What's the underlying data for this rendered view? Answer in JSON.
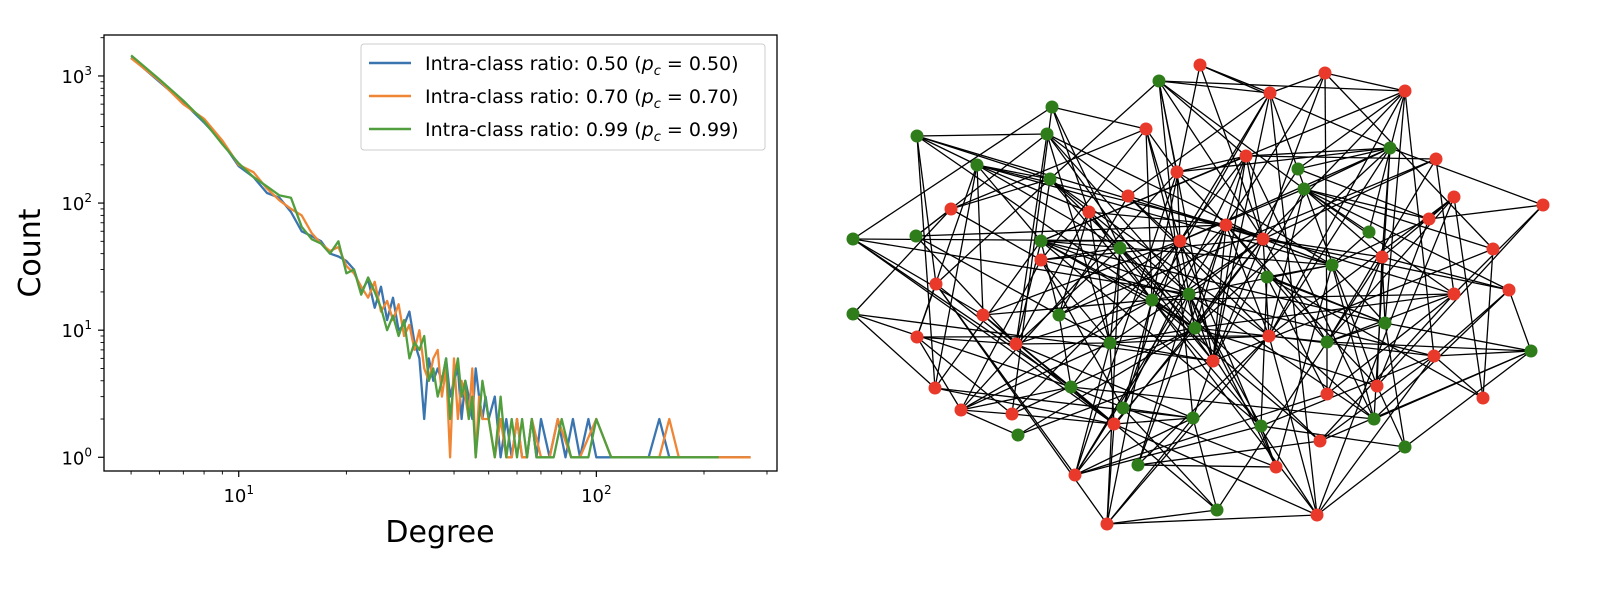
{
  "chart_data": [
    {
      "type": "line",
      "x_scale": "log",
      "y_scale": "log",
      "xlabel": "Degree",
      "ylabel": "Count",
      "xlim": [
        4.2,
        320
      ],
      "ylim": [
        0.78,
        2100
      ],
      "x_ticks": [
        {
          "value": 10,
          "base": "10",
          "exp": "1"
        },
        {
          "value": 100,
          "base": "10",
          "exp": "2"
        }
      ],
      "y_ticks": [
        {
          "value": 1,
          "base": "10",
          "exp": "0"
        },
        {
          "value": 10,
          "base": "10",
          "exp": "1"
        },
        {
          "value": 100,
          "base": "10",
          "exp": "2"
        },
        {
          "value": 1000,
          "base": "10",
          "exp": "3"
        }
      ],
      "legend_location": "top-right",
      "series": [
        {
          "name": "Intra-class ratio: 0.50",
          "pc": "0.50",
          "color": "#3b75af",
          "points": [
            [
              5,
              1400
            ],
            [
              6,
              900
            ],
            [
              7,
              620
            ],
            [
              8,
              430
            ],
            [
              9,
              300
            ],
            [
              10,
              195
            ],
            [
              11,
              160
            ],
            [
              12,
              120
            ],
            [
              13,
              110
            ],
            [
              14,
              85
            ],
            [
              15,
              60
            ],
            [
              16,
              55
            ],
            [
              17,
              50
            ],
            [
              18,
              40
            ],
            [
              19,
              38
            ],
            [
              20,
              35
            ],
            [
              21,
              30
            ],
            [
              22,
              20
            ],
            [
              23,
              25
            ],
            [
              24,
              15
            ],
            [
              25,
              22
            ],
            [
              26,
              12
            ],
            [
              27,
              18
            ],
            [
              28,
              10
            ],
            [
              29,
              11
            ],
            [
              30,
              14
            ],
            [
              31,
              8
            ],
            [
              32,
              6
            ],
            [
              33,
              2
            ],
            [
              34,
              6
            ],
            [
              35,
              4
            ],
            [
              36,
              5
            ],
            [
              37,
              4
            ],
            [
              38,
              6
            ],
            [
              39,
              3
            ],
            [
              40,
              4
            ],
            [
              41,
              5
            ],
            [
              42,
              2
            ],
            [
              43,
              4
            ],
            [
              44,
              3
            ],
            [
              45,
              2
            ],
            [
              46,
              5
            ],
            [
              47,
              3
            ],
            [
              48,
              2
            ],
            [
              49,
              3
            ],
            [
              50,
              2
            ],
            [
              52,
              3
            ],
            [
              54,
              1
            ],
            [
              56,
              2
            ],
            [
              58,
              1
            ],
            [
              60,
              2
            ],
            [
              62,
              1
            ],
            [
              64,
              1
            ],
            [
              66,
              2
            ],
            [
              68,
              1
            ],
            [
              70,
              2
            ],
            [
              74,
              1
            ],
            [
              78,
              2
            ],
            [
              82,
              1
            ],
            [
              86,
              2
            ],
            [
              90,
              1
            ],
            [
              95,
              2
            ],
            [
              100,
              1
            ],
            [
              110,
              1
            ],
            [
              120,
              1
            ],
            [
              140,
              1
            ],
            [
              150,
              2
            ],
            [
              160,
              1
            ],
            [
              200,
              1
            ],
            [
              270,
              1
            ]
          ]
        },
        {
          "name": "Intra-class ratio: 0.70",
          "pc": "0.70",
          "color": "#ef8636",
          "points": [
            [
              5,
              1380
            ],
            [
              6,
              920
            ],
            [
              7,
              600
            ],
            [
              8,
              460
            ],
            [
              9,
              310
            ],
            [
              10,
              200
            ],
            [
              11,
              175
            ],
            [
              12,
              130
            ],
            [
              13,
              105
            ],
            [
              14,
              90
            ],
            [
              15,
              80
            ],
            [
              16,
              58
            ],
            [
              17,
              48
            ],
            [
              18,
              42
            ],
            [
              19,
              45
            ],
            [
              20,
              32
            ],
            [
              21,
              28
            ],
            [
              22,
              22
            ],
            [
              23,
              18
            ],
            [
              24,
              24
            ],
            [
              25,
              14
            ],
            [
              26,
              17
            ],
            [
              27,
              12
            ],
            [
              28,
              16
            ],
            [
              29,
              9
            ],
            [
              30,
              11
            ],
            [
              31,
              7
            ],
            [
              32,
              10
            ],
            [
              33,
              5
            ],
            [
              34,
              4
            ],
            [
              35,
              6
            ],
            [
              36,
              7
            ],
            [
              37,
              3
            ],
            [
              38,
              5
            ],
            [
              39,
              1
            ],
            [
              40,
              6
            ],
            [
              41,
              2
            ],
            [
              42,
              4
            ],
            [
              43,
              3
            ],
            [
              44,
              2
            ],
            [
              45,
              5
            ],
            [
              46,
              1
            ],
            [
              47,
              3
            ],
            [
              48,
              2
            ],
            [
              50,
              2
            ],
            [
              52,
              1
            ],
            [
              54,
              2
            ],
            [
              56,
              1
            ],
            [
              58,
              1
            ],
            [
              60,
              2
            ],
            [
              62,
              1
            ],
            [
              64,
              1
            ],
            [
              66,
              2
            ],
            [
              70,
              1
            ],
            [
              74,
              1
            ],
            [
              78,
              2
            ],
            [
              85,
              1
            ],
            [
              90,
              1
            ],
            [
              100,
              2
            ],
            [
              110,
              1
            ],
            [
              140,
              1
            ],
            [
              150,
              1
            ],
            [
              160,
              2
            ],
            [
              170,
              1
            ],
            [
              250,
              1
            ],
            [
              270,
              1
            ]
          ]
        },
        {
          "name": "Intra-class ratio: 0.99",
          "pc": "0.99",
          "color": "#519e3e",
          "points": [
            [
              5,
              1450
            ],
            [
              6,
              940
            ],
            [
              7,
              640
            ],
            [
              8,
              440
            ],
            [
              9,
              290
            ],
            [
              10,
              205
            ],
            [
              11,
              160
            ],
            [
              12,
              135
            ],
            [
              13,
              115
            ],
            [
              14,
              110
            ],
            [
              15,
              65
            ],
            [
              16,
              52
            ],
            [
              17,
              48
            ],
            [
              18,
              40
            ],
            [
              19,
              50
            ],
            [
              20,
              28
            ],
            [
              21,
              30
            ],
            [
              22,
              19
            ],
            [
              23,
              26
            ],
            [
              24,
              20
            ],
            [
              25,
              15
            ],
            [
              26,
              10
            ],
            [
              27,
              13
            ],
            [
              28,
              9
            ],
            [
              29,
              12
            ],
            [
              30,
              6
            ],
            [
              31,
              8
            ],
            [
              32,
              7
            ],
            [
              33,
              9
            ],
            [
              34,
              4
            ],
            [
              35,
              5
            ],
            [
              36,
              3
            ],
            [
              37,
              4
            ],
            [
              38,
              6
            ],
            [
              39,
              2
            ],
            [
              40,
              4
            ],
            [
              41,
              6
            ],
            [
              42,
              3
            ],
            [
              43,
              4
            ],
            [
              44,
              2
            ],
            [
              45,
              3
            ],
            [
              46,
              1
            ],
            [
              47,
              2
            ],
            [
              48,
              4
            ],
            [
              50,
              2
            ],
            [
              52,
              1
            ],
            [
              54,
              3
            ],
            [
              56,
              1
            ],
            [
              58,
              2
            ],
            [
              60,
              1
            ],
            [
              62,
              2
            ],
            [
              64,
              1
            ],
            [
              66,
              2
            ],
            [
              68,
              1
            ],
            [
              72,
              1
            ],
            [
              76,
              1
            ],
            [
              80,
              2
            ],
            [
              85,
              1
            ],
            [
              90,
              1
            ],
            [
              95,
              1
            ],
            [
              100,
              2
            ],
            [
              110,
              1
            ],
            [
              120,
              1
            ],
            [
              140,
              1
            ],
            [
              170,
              1
            ],
            [
              220,
              1
            ]
          ]
        }
      ]
    },
    {
      "type": "network",
      "node_classes": [
        {
          "name": "green",
          "color": "#2e7d1a"
        },
        {
          "name": "red",
          "color": "#e8392b"
        }
      ],
      "node_count": 82
    }
  ]
}
